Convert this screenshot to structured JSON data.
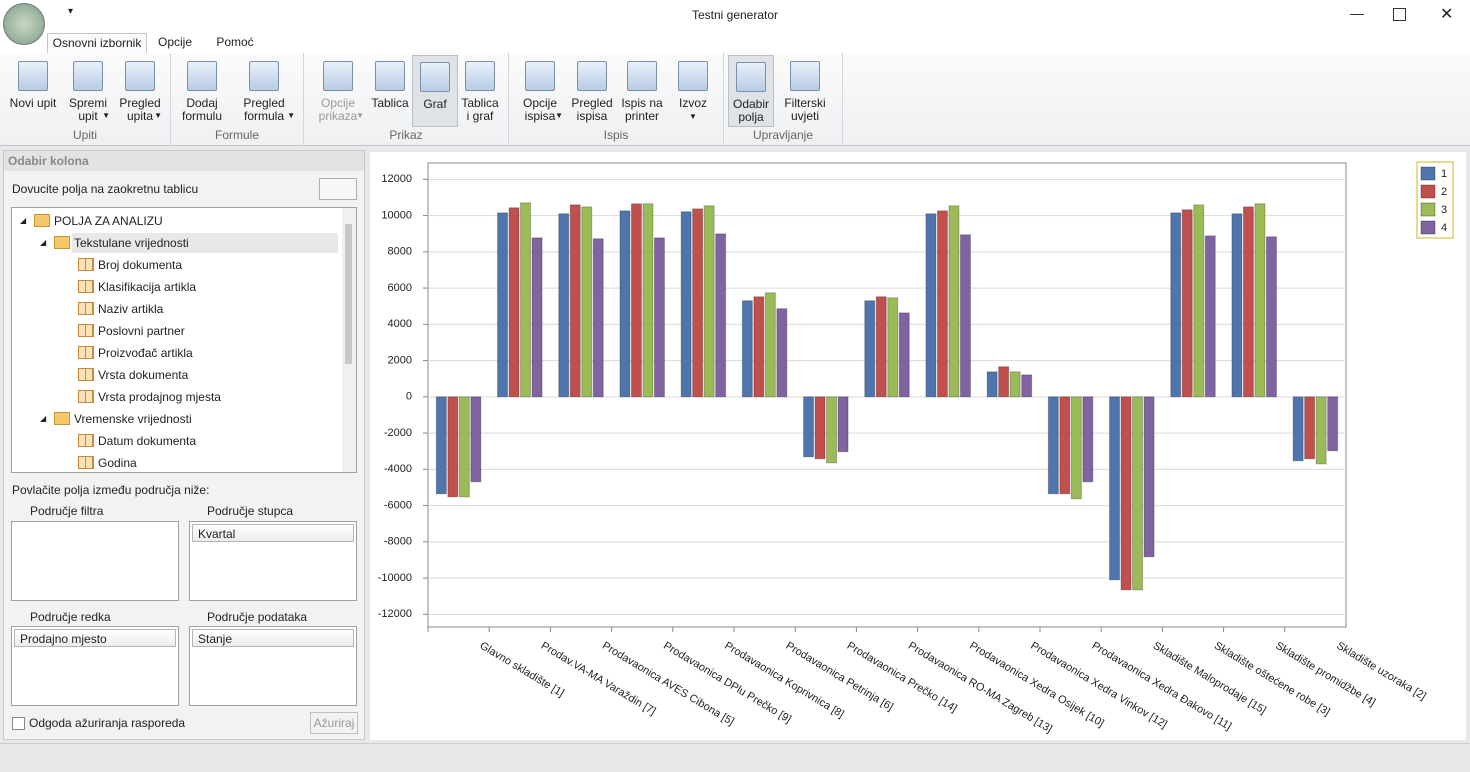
{
  "window": {
    "title": "Testni generator"
  },
  "tabs": [
    "Osnovni izbornik",
    "Opcije",
    "Pomoć"
  ],
  "ribbon": {
    "groups": [
      {
        "label": "Upiti",
        "buttons": [
          {
            "lines": [
              "Novi upit"
            ]
          },
          {
            "lines": [
              "Spremi",
              "upit"
            ]
          },
          {
            "lines": [
              "Pregled",
              "upita"
            ]
          }
        ]
      },
      {
        "label": "Formule",
        "buttons": [
          {
            "lines": [
              "Dodaj",
              "formulu"
            ]
          },
          {
            "lines": [
              "Pregled",
              "formula"
            ]
          }
        ]
      },
      {
        "label": "Prikaz",
        "buttons": [
          {
            "lines": [
              "Opcije",
              "prikaza"
            ]
          },
          {
            "lines": [
              "Tablica"
            ]
          },
          {
            "lines": [
              "Graf"
            ]
          },
          {
            "lines": [
              "Tablica",
              "i graf"
            ]
          }
        ]
      },
      {
        "label": "Ispis",
        "buttons": [
          {
            "lines": [
              "Opcije",
              "ispisa"
            ]
          },
          {
            "lines": [
              "Pregled",
              "ispisa"
            ]
          },
          {
            "lines": [
              "Ispis na",
              "printer"
            ]
          },
          {
            "lines": [
              "Izvoz"
            ]
          }
        ]
      },
      {
        "label": "Upravljanje",
        "buttons": [
          {
            "lines": [
              "Odabir",
              "polja"
            ]
          },
          {
            "lines": [
              "Filterski",
              "uvjeti"
            ]
          }
        ]
      }
    ]
  },
  "panel": {
    "title": "Odabir kolona",
    "hint": "Dovucite polja na zaokretnu tablicu",
    "tree": {
      "root": "POLJA ZA ANALIZU",
      "folders": [
        {
          "label": "Tekstulane vrijednosti",
          "fields": [
            "Broj dokumenta",
            "Klasifikacija artikla",
            "Naziv artikla",
            "Poslovni partner",
            "Proizvođač artikla",
            "Vrsta dokumenta",
            "Vrsta prodajnog mjesta"
          ]
        },
        {
          "label": "Vremenske vrijednosti",
          "fields": [
            "Datum dokumenta",
            "Godina"
          ]
        }
      ]
    },
    "areas_hint": "Povlačite polja između područja niže:",
    "filter_area": "Područje filtra",
    "column_area": "Područje stupca",
    "column_field": "Kvartal",
    "row_area": "Područje redka",
    "row_field": "Prodajno mjesto",
    "data_area": "Područje podataka",
    "data_field": "Stanje",
    "defer": "Odgoda ažuriranja rasporeda",
    "update": "Ažuriraj"
  },
  "chart_data": {
    "type": "bar",
    "categories": [
      "Glavno skladište [1]",
      "Prodav.VA-MA Varaždin [7]",
      "Prodavaonica AVES Cibona [5]",
      "Prodavaonica DPlu Prečko [9]",
      "Prodavaonica Koprivnica [8]",
      "Prodavaonica Petrinja [6]",
      "Prodavaonica Prečko [14]",
      "Prodavaonica RO-MA Zagreb [13]",
      "Prodavaonica Xedra Osijek [10]",
      "Prodavaonica Xedra Vinkov [12]",
      "Prodavaonica Xedra Đakovo [11]",
      "Skladište Maloprodaje [15]",
      "Skladište oštećene robe [3]",
      "Skladište promidžbe [4]",
      "Skladište uzoraka [2]"
    ],
    "series": [
      {
        "name": "1",
        "color": "#4f75ad",
        "values": [
          -5350,
          10150,
          10100,
          10260,
          10210,
          5300,
          -3310,
          5300,
          10100,
          1380,
          -5350,
          -10100,
          10150,
          10100,
          -3530
        ]
      },
      {
        "name": "2",
        "color": "#c0504d",
        "values": [
          -5520,
          10430,
          10590,
          10650,
          10370,
          5520,
          -3420,
          5520,
          10260,
          1660,
          -5350,
          -10650,
          10320,
          10480,
          -3420
        ]
      },
      {
        "name": "3",
        "color": "#9bbb59",
        "values": [
          -5520,
          10700,
          10480,
          10650,
          10540,
          5740,
          -3640,
          5460,
          10540,
          1380,
          -5630,
          -10650,
          10590,
          10650,
          -3700
        ]
      },
      {
        "name": "4",
        "color": "#8064a2",
        "values": [
          -4690,
          8770,
          8720,
          8770,
          8990,
          4860,
          -3030,
          4630,
          8940,
          1210,
          -4690,
          -8830,
          8880,
          8830,
          -2980
        ]
      }
    ],
    "ylim": [
      -12700,
      12900
    ],
    "yticks": [
      -12000,
      -10000,
      -8000,
      -6000,
      -4000,
      -2000,
      0,
      2000,
      4000,
      6000,
      8000,
      10000,
      12000
    ],
    "grid": true,
    "legend": "top-right"
  }
}
